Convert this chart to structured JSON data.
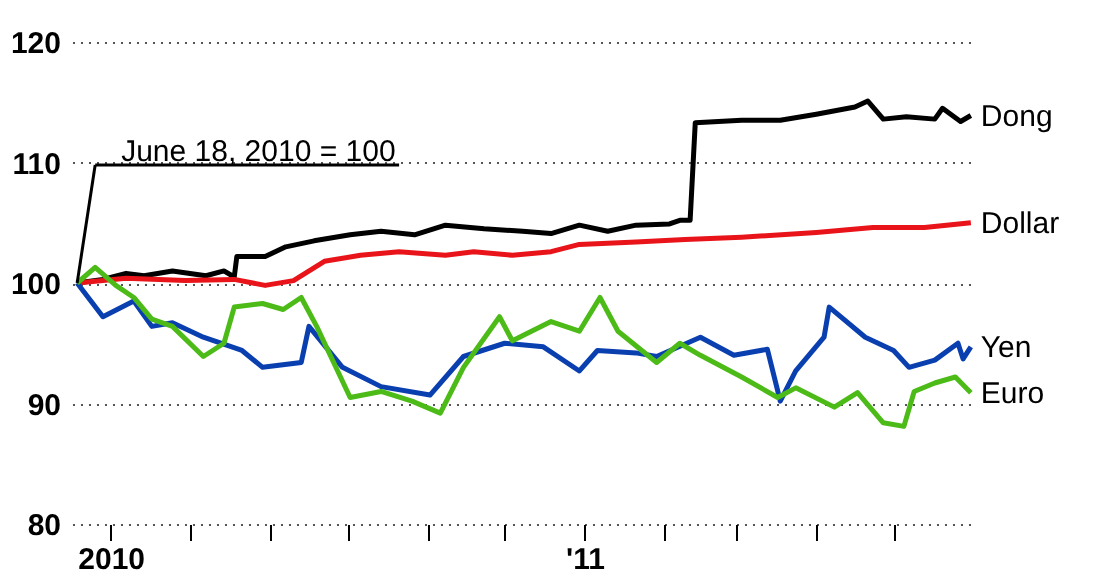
{
  "chart_data": {
    "type": "line",
    "annotations": [
      {
        "text": "June 18, 2010 = 100",
        "x": "2010-06-18",
        "y": 100
      }
    ],
    "xlim": [
      "2010-06-16",
      "2011-06-02"
    ],
    "xticks": [
      {
        "value": "2010-07-01",
        "label": "2010"
      },
      {
        "value": "2010-08-01",
        "label": null
      },
      {
        "value": "2010-09-01",
        "label": null
      },
      {
        "value": "2010-10-01",
        "label": null
      },
      {
        "value": "2010-11-01",
        "label": null
      },
      {
        "value": "2010-12-01",
        "label": null
      },
      {
        "value": "2011-01-01",
        "label": "'11"
      },
      {
        "value": "2011-02-01",
        "label": null
      },
      {
        "value": "2011-03-01",
        "label": null
      },
      {
        "value": "2011-04-01",
        "label": null
      },
      {
        "value": "2011-05-01",
        "label": null
      }
    ],
    "ylim": [
      80,
      120
    ],
    "yticks": [
      80,
      90,
      100,
      110,
      120
    ],
    "grid": "y",
    "legend": false,
    "line_style": "solid",
    "series": [
      {
        "name": "Dong",
        "color": "#000000",
        "x": [
          "2010-06-18",
          "2010-06-28",
          "2010-07-07",
          "2010-07-14",
          "2010-07-25",
          "2010-08-07",
          "2010-08-14",
          "2010-08-18",
          "2010-08-19",
          "2010-08-30",
          "2010-09-07",
          "2010-09-18",
          "2010-10-02",
          "2010-10-14",
          "2010-10-27",
          "2010-11-08",
          "2010-11-23",
          "2010-12-08",
          "2010-12-19",
          "2010-12-30",
          "2011-01-10",
          "2011-01-21",
          "2011-02-03",
          "2011-02-07",
          "2011-02-11",
          "2011-02-13",
          "2011-03-03",
          "2011-03-18",
          "2011-04-01",
          "2011-04-16",
          "2011-04-21",
          "2011-04-27",
          "2011-05-06",
          "2011-05-17",
          "2011-05-20",
          "2011-05-27",
          "2011-05-31"
        ],
        "values": [
          100,
          100.3,
          100.8,
          100.6,
          101,
          100.6,
          101,
          100.5,
          102.2,
          102.2,
          103,
          103.5,
          104,
          104.3,
          104,
          104.8,
          104.5,
          104.3,
          104.1,
          104.8,
          104.3,
          104.8,
          104.9,
          105.2,
          105.2,
          113.3,
          113.5,
          113.5,
          114,
          114.6,
          115.1,
          113.6,
          113.8,
          113.6,
          114.5,
          113.4,
          113.9
        ]
      },
      {
        "name": "Dollar",
        "color": "#e8141a",
        "x": [
          "2010-06-18",
          "2010-07-07",
          "2010-07-30",
          "2010-08-18",
          "2010-08-30",
          "2010-09-10",
          "2010-09-22",
          "2010-10-06",
          "2010-10-21",
          "2010-11-08",
          "2010-11-19",
          "2010-12-04",
          "2010-12-19",
          "2010-12-30",
          "2011-01-21",
          "2011-02-09",
          "2011-03-03",
          "2011-04-01",
          "2011-04-23",
          "2011-05-13",
          "2011-05-31"
        ],
        "values": [
          100,
          100.4,
          100.2,
          100.3,
          99.8,
          100.2,
          101.8,
          102.3,
          102.6,
          102.3,
          102.6,
          102.3,
          102.6,
          103.2,
          103.4,
          103.6,
          103.8,
          104.2,
          104.6,
          104.6,
          105
        ]
      },
      {
        "name": "Yen",
        "color": "#0a3fb0",
        "x": [
          "2010-06-18",
          "2010-06-28",
          "2010-07-10",
          "2010-07-17",
          "2010-07-25",
          "2010-08-06",
          "2010-08-21",
          "2010-08-29",
          "2010-09-13",
          "2010-09-16",
          "2010-09-29",
          "2010-10-14",
          "2010-11-02",
          "2010-11-15",
          "2010-12-01",
          "2010-12-16",
          "2010-12-30",
          "2011-01-06",
          "2011-01-21",
          "2011-01-29",
          "2011-02-15",
          "2011-02-28",
          "2011-03-13",
          "2011-03-18",
          "2011-03-24",
          "2011-04-04",
          "2011-04-06",
          "2011-04-20",
          "2011-05-01",
          "2011-05-07",
          "2011-05-17",
          "2011-05-26",
          "2011-05-28",
          "2011-05-31"
        ],
        "values": [
          100,
          97.2,
          98.5,
          96.4,
          96.7,
          95.5,
          94.4,
          93,
          93.4,
          96.4,
          93,
          91.4,
          90.7,
          93.9,
          95,
          94.7,
          92.7,
          94.4,
          94.2,
          93.9,
          95.5,
          94,
          94.5,
          90.2,
          92.7,
          95.5,
          98,
          95.5,
          94.4,
          93,
          93.6,
          95,
          93.7,
          94.7
        ]
      },
      {
        "name": "Euro",
        "color": "#4cbb17",
        "x": [
          "2010-06-18",
          "2010-06-25",
          "2010-07-03",
          "2010-07-10",
          "2010-07-17",
          "2010-07-25",
          "2010-08-06",
          "2010-08-14",
          "2010-08-18",
          "2010-08-29",
          "2010-09-06",
          "2010-09-13",
          "2010-09-19",
          "2010-10-02",
          "2010-10-14",
          "2010-10-26",
          "2010-11-06",
          "2010-11-15",
          "2010-11-29",
          "2010-12-04",
          "2010-12-19",
          "2010-12-30",
          "2011-01-07",
          "2011-01-14",
          "2011-01-29",
          "2011-02-07",
          "2011-02-15",
          "2011-03-03",
          "2011-03-17",
          "2011-03-24",
          "2011-04-08",
          "2011-04-17",
          "2011-04-27",
          "2011-05-05",
          "2011-05-09",
          "2011-05-17",
          "2011-05-25",
          "2011-05-31"
        ],
        "values": [
          100,
          101.3,
          99.8,
          98.8,
          97,
          96.4,
          93.9,
          95,
          98,
          98.3,
          97.8,
          98.8,
          96.4,
          90.5,
          91,
          90.2,
          89.2,
          93,
          97.2,
          95.2,
          96.8,
          96,
          98.8,
          96,
          93.4,
          95,
          94,
          92.2,
          90.5,
          91.3,
          89.7,
          90.9,
          88.4,
          88.1,
          91,
          91.7,
          92.2,
          90.9
        ]
      }
    ]
  }
}
